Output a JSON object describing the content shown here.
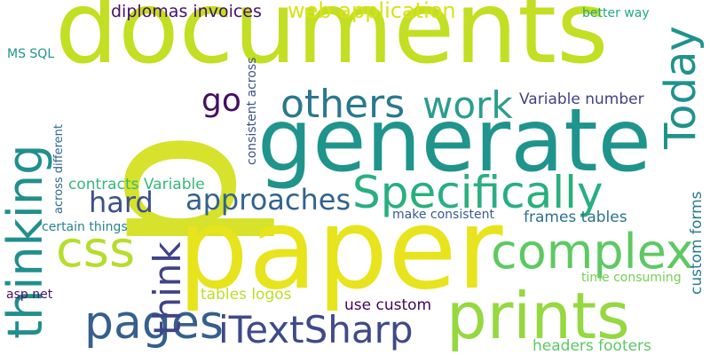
{
  "words": [
    {
      "text": "p",
      "color": "#d6e22b",
      "vertical": true
    },
    {
      "text": "documents",
      "color": "#c2df23",
      "vertical": false
    },
    {
      "text": "paper",
      "color": "#e7e41d",
      "vertical": false
    },
    {
      "text": "generate",
      "color": "#1f948c",
      "vertical": false
    },
    {
      "text": "prints",
      "color": "#95d840",
      "vertical": false
    },
    {
      "text": "Specifically",
      "color": "#29af7f",
      "vertical": false
    },
    {
      "text": "complex",
      "color": "#5ec962",
      "vertical": false
    },
    {
      "text": "thinking",
      "color": "#218f8d",
      "vertical": true
    },
    {
      "text": "Today",
      "color": "#20928c",
      "vertical": true
    },
    {
      "text": "others",
      "color": "#2a788e",
      "vertical": false
    },
    {
      "text": "work",
      "color": "#2a9d8f",
      "vertical": false
    },
    {
      "text": "css",
      "color": "#b5de2b",
      "vertical": false
    },
    {
      "text": "pages",
      "color": "#355f8d",
      "vertical": false
    },
    {
      "text": "iTextSharp",
      "color": "#3e4a89",
      "vertical": false
    },
    {
      "text": "think",
      "color": "#404387",
      "vertical": true
    },
    {
      "text": "approaches",
      "color": "#33638d",
      "vertical": false
    },
    {
      "text": "web application",
      "color": "#d8e219",
      "vertical": false
    },
    {
      "text": "diplomas invoices",
      "color": "#471063",
      "vertical": false
    },
    {
      "text": "go",
      "color": "#440f62",
      "vertical": false
    },
    {
      "text": "hard",
      "color": "#3b518b",
      "vertical": false
    },
    {
      "text": "Variable number",
      "color": "#424186",
      "vertical": false
    },
    {
      "text": "contracts Variable",
      "color": "#37b878",
      "vertical": false
    },
    {
      "text": "frames tables",
      "color": "#2d718e",
      "vertical": false
    },
    {
      "text": "custom forms",
      "color": "#287c8e",
      "vertical": true
    },
    {
      "text": "tables logos",
      "color": "#bade28",
      "vertical": false
    },
    {
      "text": "use custom",
      "color": "#450559",
      "vertical": false
    },
    {
      "text": "headers footers",
      "color": "#5dc863",
      "vertical": false
    },
    {
      "text": "time consuming",
      "color": "#75d054",
      "vertical": false
    },
    {
      "text": "make consistent",
      "color": "#375b8d",
      "vertical": false
    },
    {
      "text": "better way",
      "color": "#22a884",
      "vertical": false
    },
    {
      "text": "MS SQL",
      "color": "#20928c",
      "vertical": false
    },
    {
      "text": "consistent across",
      "color": "#3a538b",
      "vertical": true
    },
    {
      "text": "across different",
      "color": "#31688e",
      "vertical": true
    },
    {
      "text": "certain things",
      "color": "#25858e",
      "vertical": false
    },
    {
      "text": "asp net",
      "color": "#481467",
      "vertical": false
    }
  ]
}
